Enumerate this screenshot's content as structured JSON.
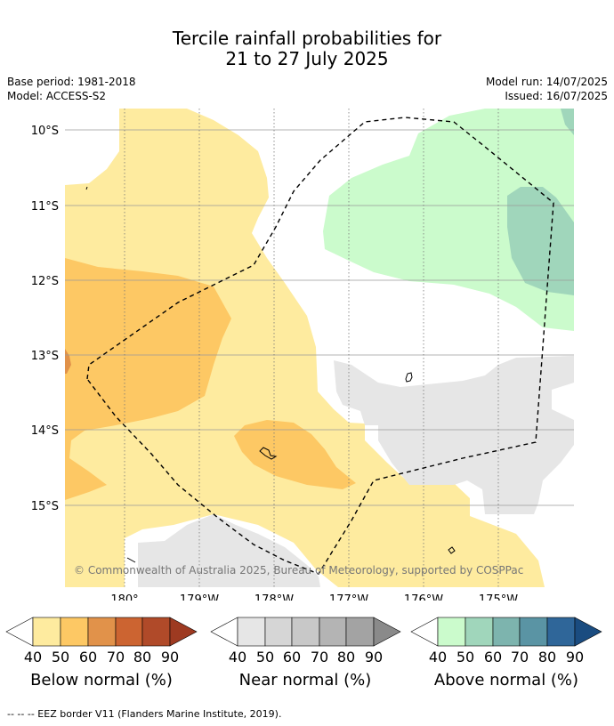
{
  "title_line1": "Tercile rainfall probabilities for",
  "title_line2": "21 to 27 July 2025",
  "meta": {
    "base_period": "Base period: 1981-2018",
    "model": "Model: ACCESS-S2",
    "model_run": "Model run: 14/07/2025",
    "issued": "Issued: 16/07/2025"
  },
  "map": {
    "lat_labels": [
      "10°S",
      "11°S",
      "12°S",
      "13°S",
      "14°S",
      "15°S"
    ],
    "lon_labels": [
      "180°",
      "179°W",
      "178°W",
      "177°W",
      "176°W",
      "175°W"
    ],
    "credit": "© Commonwealth of Australia 2025, Bureau of Meteorology, supported by COSPPac"
  },
  "legend": {
    "below": {
      "title": "Below normal (%)",
      "ticks": [
        "40",
        "50",
        "60",
        "70",
        "80",
        "90"
      ],
      "colors": [
        "#feeb9f",
        "#fdc864",
        "#e1924a",
        "#cc6431",
        "#b04a29",
        "#9e3a21"
      ]
    },
    "near": {
      "title": "Near normal (%)",
      "ticks": [
        "40",
        "50",
        "60",
        "70",
        "80",
        "90"
      ],
      "colors": [
        "#e6e6e6",
        "#d6d6d6",
        "#c8c8c8",
        "#b4b4b4",
        "#a3a3a3",
        "#8a8a8a"
      ]
    },
    "above": {
      "title": "Above normal (%)",
      "ticks": [
        "40",
        "50",
        "60",
        "70",
        "80",
        "90"
      ],
      "colors": [
        "#cbfbcc",
        "#a0d6bb",
        "#7db4ae",
        "#5a94a4",
        "#2f6699",
        "#1a4c80"
      ]
    }
  },
  "eez_note": "--  --  -- EEZ border V11 (Flanders Marine Institute, 2019)."
}
